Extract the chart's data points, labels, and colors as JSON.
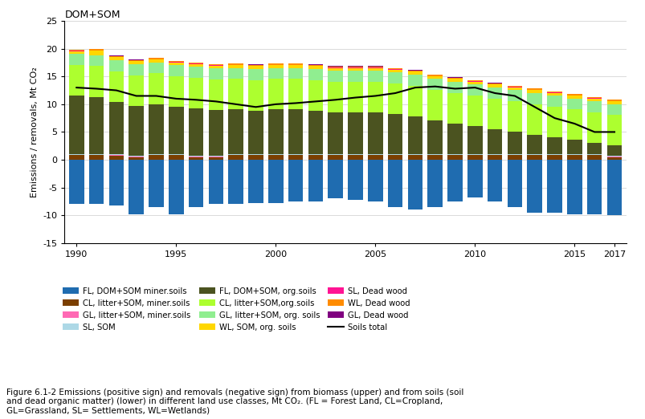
{
  "years": [
    1990,
    1991,
    1992,
    1993,
    1994,
    1995,
    1996,
    1997,
    1998,
    1999,
    2000,
    2001,
    2002,
    2003,
    2004,
    2005,
    2006,
    2007,
    2008,
    2009,
    2010,
    2011,
    2012,
    2013,
    2014,
    2015,
    2016,
    2017
  ],
  "title": "DOM+SOM",
  "ylabel": "Emissions / removals, Mt CO₂",
  "ylim": [
    -15,
    25
  ],
  "yticks": [
    -15,
    -10,
    -5,
    0,
    5,
    10,
    15,
    20,
    25
  ],
  "FL_DOM_SOM_min": [
    -8.0,
    -8.0,
    -8.3,
    -9.8,
    -8.5,
    -9.8,
    -8.5,
    -8.0,
    -8.0,
    -7.8,
    -7.8,
    -7.5,
    -7.5,
    -7.0,
    -7.2,
    -7.5,
    -8.5,
    -9.0,
    -8.5,
    -7.5,
    -6.8,
    -7.5,
    -8.5,
    -9.5,
    -9.5,
    -9.8,
    -9.8,
    -10.0
  ],
  "CL_litter_SOM_min": [
    0.8,
    0.8,
    0.7,
    0.5,
    0.8,
    0.8,
    0.5,
    0.5,
    0.8,
    0.8,
    0.8,
    0.8,
    0.8,
    0.8,
    0.8,
    0.8,
    0.8,
    0.8,
    0.8,
    0.8,
    0.8,
    0.8,
    0.8,
    0.8,
    0.8,
    0.8,
    0.8,
    0.5
  ],
  "GL_litter_SOM_min": [
    0.1,
    0.1,
    0.1,
    0.1,
    0.1,
    0.1,
    0.1,
    0.1,
    0.1,
    0.1,
    0.1,
    0.1,
    0.1,
    0.1,
    0.1,
    0.1,
    0.1,
    0.1,
    0.1,
    0.1,
    0.1,
    0.1,
    0.1,
    0.1,
    0.1,
    0.1,
    0.1,
    0.1
  ],
  "SL_SOM": [
    0.15,
    0.15,
    0.15,
    0.15,
    0.15,
    0.15,
    0.15,
    0.15,
    0.15,
    0.15,
    0.15,
    0.15,
    0.15,
    0.15,
    0.15,
    0.15,
    0.15,
    0.15,
    0.15,
    0.15,
    0.15,
    0.15,
    0.15,
    0.15,
    0.15,
    0.15,
    0.15,
    0.15
  ],
  "FL_DOM_SOM_org": [
    10.5,
    10.3,
    9.5,
    9.0,
    9.0,
    8.5,
    8.5,
    8.2,
    8.0,
    7.8,
    8.0,
    8.0,
    7.8,
    7.5,
    7.5,
    7.5,
    7.2,
    6.8,
    6.0,
    5.5,
    5.0,
    4.5,
    4.0,
    3.5,
    3.0,
    2.5,
    2.0,
    1.8
  ],
  "CL_litter_SOM_org": [
    5.5,
    5.5,
    5.5,
    5.5,
    5.5,
    5.5,
    5.5,
    5.5,
    5.5,
    5.5,
    5.5,
    5.5,
    5.5,
    5.5,
    5.5,
    5.5,
    5.5,
    5.5,
    5.5,
    5.5,
    5.5,
    5.5,
    5.5,
    5.5,
    5.5,
    5.5,
    5.5,
    5.5
  ],
  "GL_litter_SOM_org": [
    2.0,
    2.0,
    2.0,
    2.0,
    2.0,
    2.0,
    2.0,
    2.0,
    2.0,
    2.0,
    2.0,
    2.0,
    2.0,
    2.0,
    2.0,
    2.0,
    2.0,
    2.0,
    2.0,
    2.0,
    2.0,
    2.0,
    2.0,
    2.0,
    2.0,
    2.0,
    2.0,
    2.0
  ],
  "WL_SOM_org": [
    0.5,
    0.8,
    0.5,
    0.5,
    0.5,
    0.5,
    0.5,
    0.5,
    0.5,
    0.5,
    0.5,
    0.5,
    0.5,
    0.5,
    0.5,
    0.5,
    0.5,
    0.5,
    0.5,
    0.5,
    0.5,
    0.5,
    0.5,
    0.5,
    0.5,
    0.5,
    0.5,
    0.5
  ],
  "SL_dead_wood": [
    0.05,
    0.05,
    0.05,
    0.05,
    0.05,
    0.05,
    0.05,
    0.05,
    0.05,
    0.05,
    0.05,
    0.05,
    0.05,
    0.05,
    0.05,
    0.05,
    0.05,
    0.05,
    0.05,
    0.05,
    0.05,
    0.05,
    0.05,
    0.05,
    0.05,
    0.05,
    0.05,
    0.05
  ],
  "WL_dead_wood": [
    0.2,
    0.2,
    0.2,
    0.2,
    0.2,
    0.2,
    0.2,
    0.2,
    0.2,
    0.2,
    0.2,
    0.2,
    0.2,
    0.2,
    0.2,
    0.2,
    0.2,
    0.2,
    0.2,
    0.2,
    0.2,
    0.2,
    0.2,
    0.2,
    0.2,
    0.2,
    0.2,
    0.2
  ],
  "GL_dead_wood": [
    0.05,
    0.05,
    0.05,
    0.05,
    0.05,
    0.05,
    0.05,
    0.05,
    0.05,
    0.05,
    0.05,
    0.05,
    0.05,
    0.05,
    0.05,
    0.05,
    0.05,
    0.05,
    0.05,
    0.05,
    0.05,
    0.05,
    0.05,
    0.05,
    0.05,
    0.05,
    0.05,
    0.05
  ],
  "soils_total": [
    13.0,
    12.8,
    12.5,
    11.5,
    11.5,
    11.0,
    10.8,
    10.5,
    10.0,
    9.5,
    10.0,
    10.2,
    10.5,
    10.8,
    11.2,
    11.5,
    12.0,
    13.0,
    13.2,
    12.8,
    13.0,
    12.0,
    11.5,
    9.5,
    7.5,
    6.5,
    5.0,
    5.0
  ],
  "colors": {
    "FL_DOM_SOM_min": "#1F6CB0",
    "CL_litter_SOM_min": "#7B3F00",
    "GL_litter_SOM_min": "#FF69B4",
    "SL_SOM": "#ADD8E6",
    "FL_DOM_SOM_org": "#4B5320",
    "CL_litter_SOM_org": "#ADFF2F",
    "GL_litter_SOM_org": "#90EE90",
    "WL_SOM_org": "#FFD700",
    "SL_dead_wood": "#FF1493",
    "WL_dead_wood": "#FF8C00",
    "GL_dead_wood": "#800080"
  },
  "background_color": "#ffffff",
  "caption": "Figure 6.1-2 Emissions (positive sign) and removals (negative sign) from biomass (upper) and from soils (soil\nand dead organic matter) (lower) in different land use classes, Mt CO₂. (FL = Forest Land, CL=Cropland,\nGL=Grassland, SL= Settlements, WL=Wetlands)"
}
